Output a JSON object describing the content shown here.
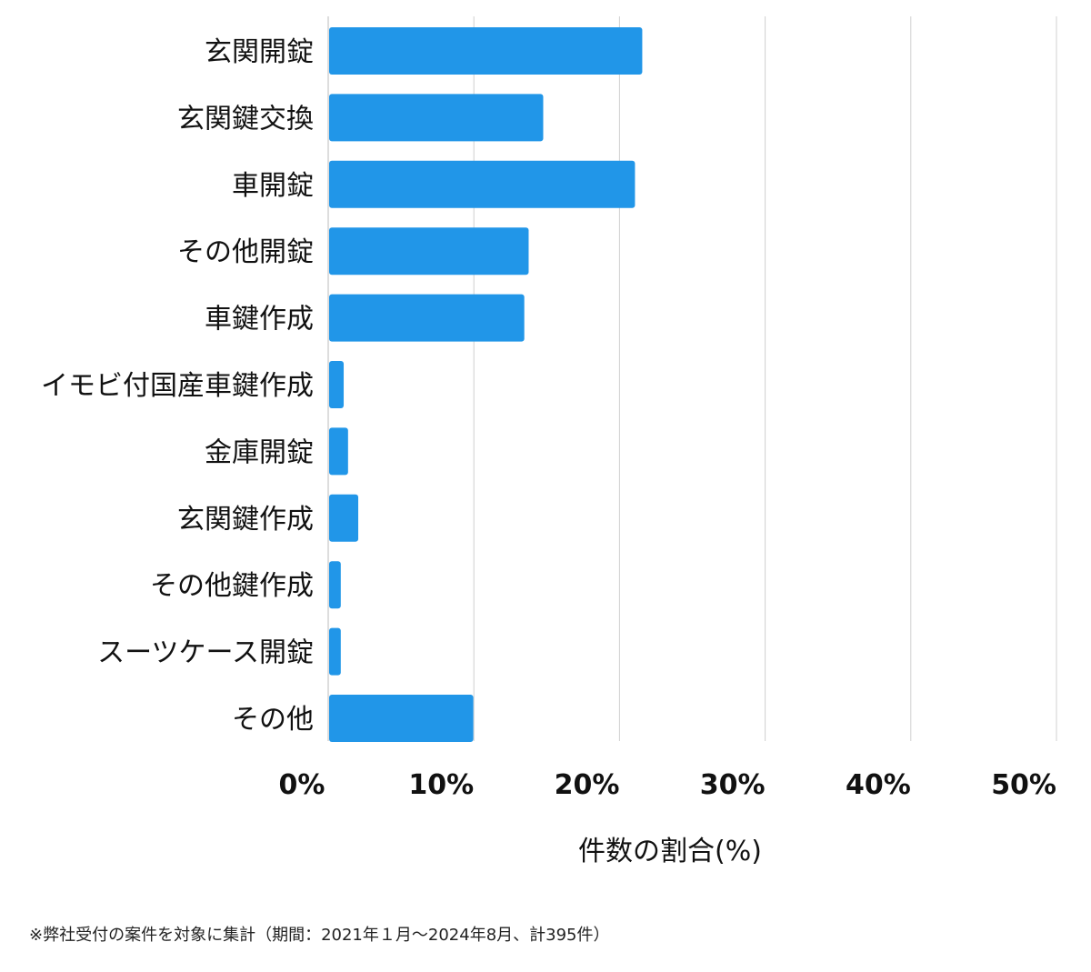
{
  "chart_data": {
    "type": "bar",
    "orientation": "horizontal",
    "categories": [
      "玄関開錠",
      "玄関鍵交換",
      "車開錠",
      "その他開錠",
      "車鍵作成",
      "イモビ付国産車鍵作成",
      "金庫開錠",
      "玄関鍵作成",
      "その他鍵作成",
      "スーツケース開錠",
      "その他"
    ],
    "values": [
      21.5,
      14.7,
      21.0,
      13.7,
      13.4,
      1.0,
      1.3,
      2.0,
      0.8,
      0.8,
      9.9
    ],
    "xlim": [
      0,
      50
    ],
    "ticks": [
      0,
      10,
      20,
      30,
      40,
      50
    ],
    "tick_labels": [
      "0%",
      "10%",
      "20%",
      "30%",
      "40%",
      "50%"
    ],
    "xlabel": "件数の割合(%)",
    "ylabel": "",
    "grid": true,
    "bar_color": "#2196e8",
    "grid_color": "#d0d0d0"
  },
  "footnote": "※弊社受付の案件を対象に集計（期間：2021年１月〜2024年8月、計395件）"
}
